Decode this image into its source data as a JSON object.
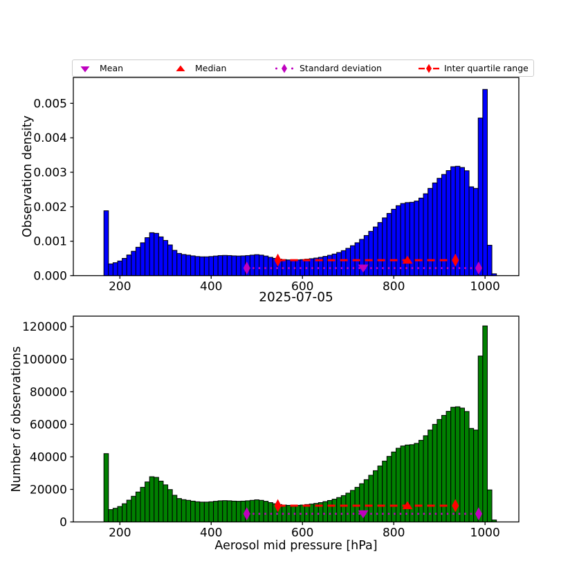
{
  "figure": {
    "title": "2025-07-05",
    "xlabel": "Aerosol mid pressure [hPa]",
    "top_ylabel": "Observation density",
    "bottom_ylabel": "Number of observations"
  },
  "legend": {
    "items": [
      {
        "label": "Mean",
        "marker": "triangle-down",
        "color": "#bf00bf",
        "line": "none"
      },
      {
        "label": "Median",
        "marker": "triangle-up",
        "color": "#ff0000",
        "line": "none"
      },
      {
        "label": "Standard deviation",
        "marker": "thin-diamond",
        "color": "#bf00bf",
        "line": "dotted"
      },
      {
        "label": "Inter quartile range",
        "marker": "thin-diamond",
        "color": "#ff0000",
        "line": "dashed"
      }
    ]
  },
  "stats": {
    "mean_hpa": 733,
    "median_hpa": 830,
    "std_lo_hpa": 478,
    "std_hi_hpa": 986,
    "iqr_lo_hpa": 546,
    "iqr_hi_hpa": 935
  },
  "colors": {
    "top_bars": "#0000ff",
    "bottom_bars": "#008000",
    "mean_std": "#bf00bf",
    "median_iqr": "#ff0000"
  },
  "chart_data": [
    {
      "type": "bar",
      "subtype": "histogram",
      "title": "",
      "ylabel": "Observation density",
      "xlabel": "",
      "bar_color": "#0000ff",
      "bin_start": 165,
      "bin_width": 10,
      "xlim": [
        98,
        1074
      ],
      "ylim": [
        0,
        0.00575
      ],
      "xticks": [
        200,
        400,
        600,
        800,
        1000
      ],
      "xtick_labels": [
        "200",
        "400",
        "600",
        "800",
        "1000"
      ],
      "yticks": [
        0,
        0.001,
        0.002,
        0.003,
        0.004,
        0.005
      ],
      "ytick_labels": [
        "0.000",
        "0.001",
        "0.002",
        "0.003",
        "0.004",
        "0.005"
      ],
      "grid": false,
      "legend_position": "top-outside",
      "marker_levels": {
        "std_line": 0.00022,
        "iqr_line": 0.00045
      },
      "values": [
        0.0018834,
        0.0003408,
        0.0003767,
        0.000426,
        0.0005022,
        0.0006009,
        0.0007085,
        0.0008251,
        0.0009552,
        0.0011031,
        0.0012466,
        0.0012287,
        0.0011256,
        0.0010224,
        0.0008924,
        0.0007354,
        0.0006457,
        0.0006143,
        0.0005964,
        0.000574,
        0.0005561,
        0.0005471,
        0.0005471,
        0.0005561,
        0.0005695,
        0.000583,
        0.0005874,
        0.000583,
        0.000574,
        0.0005695,
        0.000574,
        0.000583,
        0.0005964,
        0.0006099,
        0.0005964,
        0.0005695,
        0.0005336,
        0.0005022,
        0.0004798,
        0.0004664,
        0.0004574,
        0.0004529,
        0.0004574,
        0.0004664,
        0.0004798,
        0.0004933,
        0.0005112,
        0.0005336,
        0.0005605,
        0.0005919,
        0.0006278,
        0.0006726,
        0.0007265,
        0.0007937,
        0.00087,
        0.0009552,
        0.0010538,
        0.0011659,
        0.001287,
        0.0014126,
        0.0015426,
        0.0016771,
        0.0018072,
        0.0019283,
        0.0020314,
        0.0020942,
        0.0021211,
        0.00213,
        0.0021659,
        0.0022511,
        0.0023767,
        0.0025336,
        0.0026906,
        0.0028251,
        0.0029372,
        0.0030493,
        0.0031614,
        0.0031749,
        0.003139,
        0.0030448,
        0.0025784,
        0.0025336,
        0.004574,
        0.0054036,
        0.0008834,
        5.38e-05
      ]
    },
    {
      "type": "bar",
      "subtype": "histogram",
      "title": "2025-07-05",
      "ylabel": "Number of observations",
      "xlabel": "Aerosol mid pressure [hPa]",
      "bar_color": "#008000",
      "bin_start": 165,
      "bin_width": 10,
      "xlim": [
        98,
        1074
      ],
      "ylim": [
        0,
        126500
      ],
      "xticks": [
        200,
        400,
        600,
        800,
        1000
      ],
      "xtick_labels": [
        "200",
        "400",
        "600",
        "800",
        "1000"
      ],
      "yticks": [
        0,
        20000,
        40000,
        60000,
        80000,
        100000,
        120000
      ],
      "ytick_labels": [
        "0",
        "20000",
        "40000",
        "60000",
        "80000",
        "100000",
        "120000"
      ],
      "grid": false,
      "marker_levels": {
        "std_line": 5000,
        "iqr_line": 10000
      },
      "values": [
        42000,
        7600,
        8400,
        9500,
        11200,
        13400,
        15800,
        18400,
        21300,
        24600,
        27800,
        27400,
        25100,
        22800,
        19900,
        16400,
        14400,
        13700,
        13300,
        12800,
        12400,
        12200,
        12200,
        12400,
        12700,
        13000,
        13100,
        13000,
        12800,
        12700,
        12800,
        13000,
        13300,
        13600,
        13300,
        12700,
        11900,
        11200,
        10700,
        10400,
        10200,
        10100,
        10200,
        10400,
        10700,
        11000,
        11400,
        11900,
        12500,
        13200,
        14000,
        15000,
        16200,
        17700,
        19400,
        21300,
        23500,
        26000,
        28700,
        31500,
        34400,
        37400,
        40300,
        43000,
        45300,
        46700,
        47300,
        47500,
        48300,
        50200,
        53000,
        56500,
        60000,
        63000,
        65500,
        68000,
        70500,
        70800,
        70000,
        67900,
        57500,
        56500,
        102000,
        120500,
        19700,
        1200
      ]
    }
  ]
}
